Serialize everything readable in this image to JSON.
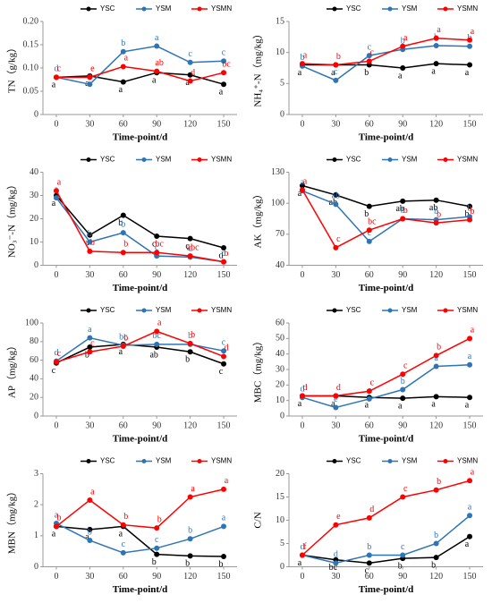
{
  "chart_data": [
    {
      "type": "line",
      "ylabel": "TN（g/kg）",
      "xlabel": "Time-point/d",
      "x": [
        0,
        30,
        60,
        90,
        120,
        150
      ],
      "xlim": [
        -12,
        162
      ],
      "xticks": [
        0,
        30,
        60,
        90,
        120,
        150
      ],
      "ylim": [
        0,
        0.2
      ],
      "yticks": [
        0,
        0.05,
        {
          "value": 0.1,
          "label": "0.10"
        },
        0.15,
        {
          "value": 0.2,
          "label": "0.20"
        }
      ],
      "series": [
        {
          "name": "YSC",
          "color": "#000000",
          "values": [
            0.08,
            0.083,
            0.07,
            0.09,
            0.085,
            0.065
          ],
          "letters": [
            "a",
            "a",
            "a",
            "a",
            "a",
            "a"
          ]
        },
        {
          "name": "YSM",
          "color": "#2e75b6",
          "values": [
            0.08,
            0.065,
            0.135,
            0.147,
            0.112,
            0.115
          ],
          "letters": [
            "d",
            "e",
            "b",
            "a",
            "c",
            "c"
          ]
        },
        {
          "name": "YSMN",
          "color": "#ff0000",
          "values": [
            0.08,
            0.08,
            0.103,
            0.093,
            0.072,
            0.09
          ],
          "letters": [
            "c",
            "e",
            "a",
            "ab",
            "d",
            "bc"
          ]
        }
      ]
    },
    {
      "type": "line",
      "ylabel": "NH₄⁺-N（mg/kg）",
      "xlabel": "Time-point/d",
      "x": [
        0,
        30,
        60,
        90,
        120,
        150
      ],
      "xlim": [
        -12,
        162
      ],
      "xticks": [
        0,
        30,
        60,
        90,
        120,
        150
      ],
      "ylim": [
        0,
        15
      ],
      "yticks": [
        0,
        5,
        10,
        15
      ],
      "series": [
        {
          "name": "YSC",
          "color": "#000000",
          "values": [
            8,
            8,
            8,
            7.5,
            8.2,
            8
          ],
          "letters": [
            "a",
            "a",
            "b",
            "a",
            "a",
            "a"
          ]
        },
        {
          "name": "YSM",
          "color": "#2e75b6",
          "values": [
            7.8,
            5.5,
            9.5,
            10.5,
            11.1,
            11
          ],
          "letters": [
            "b",
            "c",
            "c",
            "b",
            "b",
            "b"
          ]
        },
        {
          "name": "YSMN",
          "color": "#ff0000",
          "values": [
            8.2,
            8,
            8.6,
            11,
            12.3,
            12
          ],
          "letters": [
            "a",
            "b",
            "c",
            "a",
            "a",
            "a"
          ]
        }
      ]
    },
    {
      "type": "line",
      "ylabel": "NO₃⁻-N（mg/kg）",
      "xlabel": "Time-point/d",
      "x": [
        0,
        30,
        60,
        90,
        120,
        150
      ],
      "xlim": [
        -12,
        162
      ],
      "xticks": [
        0,
        30,
        60,
        90,
        120,
        150
      ],
      "ylim": [
        0,
        40
      ],
      "yticks": [
        0,
        10,
        20,
        30,
        40
      ],
      "series": [
        {
          "name": "YSC",
          "color": "#000000",
          "values": [
            30,
            13,
            21.5,
            12.5,
            11.5,
            7.5
          ],
          "letters": [
            "a",
            "a",
            "b",
            "c",
            "c",
            "d"
          ]
        },
        {
          "name": "YSM",
          "color": "#2e75b6",
          "values": [
            29,
            10,
            14,
            4,
            3.5,
            1.5
          ],
          "letters": [
            "a",
            "b",
            "b",
            "c",
            "d",
            "c"
          ]
        },
        {
          "name": "YSMN",
          "color": "#ff0000",
          "values": [
            32,
            6,
            5.5,
            5.5,
            4,
            1.5
          ],
          "letters": [
            "a",
            "b",
            "b",
            "bc",
            "abc",
            "b"
          ]
        }
      ]
    },
    {
      "type": "line",
      "ylabel": "AK（mg/kg）",
      "xlabel": "Time-point/d",
      "x": [
        0,
        30,
        60,
        90,
        120,
        150
      ],
      "xlim": [
        -12,
        162
      ],
      "xticks": [
        0,
        30,
        60,
        90,
        120,
        150
      ],
      "ylim": [
        40,
        130
      ],
      "yticks": [
        40,
        70,
        100,
        130
      ],
      "series": [
        {
          "name": "YSC",
          "color": "#000000",
          "values": [
            117,
            108,
            97,
            102,
            103,
            97
          ],
          "letters": [
            "a",
            "ab",
            "b",
            "ab",
            "ab",
            "b"
          ]
        },
        {
          "name": "YSM",
          "color": "#2e75b6",
          "values": [
            112,
            99,
            63,
            85,
            84,
            87
          ],
          "letters": [
            "a",
            "ab",
            "c",
            "b",
            "b",
            "b"
          ]
        },
        {
          "name": "YSMN",
          "color": "#ff0000",
          "values": [
            113,
            57,
            74,
            85,
            81,
            84
          ],
          "letters": [
            "a",
            "c",
            "bc",
            "b",
            "b",
            "b"
          ]
        }
      ]
    },
    {
      "type": "line",
      "ylabel": "AP（mg/kg）",
      "xlabel": "Time-point/d",
      "x": [
        0,
        30,
        60,
        90,
        120,
        150
      ],
      "xlim": [
        -12,
        162
      ],
      "xticks": [
        0,
        30,
        60,
        90,
        120,
        150
      ],
      "ylim": [
        0,
        100
      ],
      "yticks": [
        0,
        20,
        40,
        60,
        80,
        100
      ],
      "series": [
        {
          "name": "YSC",
          "color": "#000000",
          "values": [
            57,
            74,
            77,
            74,
            69,
            56
          ],
          "letters": [
            "c",
            "b",
            "a",
            "ab",
            "b",
            "c"
          ]
        },
        {
          "name": "YSM",
          "color": "#2e75b6",
          "values": [
            59,
            84,
            76,
            77,
            77,
            70
          ],
          "letters": [
            "d",
            "a",
            "bc",
            "bc",
            "b",
            "c"
          ]
        },
        {
          "name": "YSMN",
          "color": "#ff0000",
          "values": [
            58,
            69,
            75,
            91,
            78,
            64
          ],
          "letters": [
            "c",
            "c",
            "b",
            "a",
            "b",
            "d"
          ]
        }
      ]
    },
    {
      "type": "line",
      "ylabel": "MBC（mg/kg）",
      "xlabel": "Time-point/d",
      "x": [
        0,
        30,
        60,
        90,
        120,
        150
      ],
      "xlim": [
        -12,
        162
      ],
      "xticks": [
        0,
        30,
        60,
        90,
        120,
        150
      ],
      "ylim": [
        0,
        60
      ],
      "yticks": [
        0,
        10,
        20,
        30,
        40,
        50,
        60
      ],
      "series": [
        {
          "name": "YSC",
          "color": "#000000",
          "values": [
            13,
            13,
            12,
            11.5,
            12.5,
            12
          ],
          "letters": [
            "a",
            "a",
            "a",
            "a",
            "a",
            "a"
          ]
        },
        {
          "name": "YSM",
          "color": "#2e75b6",
          "values": [
            12,
            5.5,
            11,
            17,
            32,
            33
          ],
          "letters": [
            "d",
            "e",
            "c",
            "b",
            "a",
            "a"
          ]
        },
        {
          "name": "YSMN",
          "color": "#ff0000",
          "values": [
            13,
            13,
            16,
            27,
            39,
            50
          ],
          "letters": [
            "d",
            "d",
            "c",
            "c",
            "b",
            "a"
          ]
        }
      ]
    },
    {
      "type": "line",
      "ylabel": "MBN（mg/kg）",
      "xlabel": "Time-point/d",
      "x": [
        0,
        30,
        60,
        90,
        120,
        150
      ],
      "xlim": [
        -12,
        162
      ],
      "xticks": [
        0,
        30,
        60,
        90,
        120,
        150
      ],
      "ylim": [
        0,
        3
      ],
      "yticks": [
        0,
        1,
        2,
        3
      ],
      "series": [
        {
          "name": "YSC",
          "color": "#000000",
          "values": [
            1.3,
            1.2,
            1.3,
            0.4,
            0.35,
            0.33
          ],
          "letters": [
            "a",
            "a",
            "a",
            "b",
            "b",
            "b"
          ]
        },
        {
          "name": "YSM",
          "color": "#2e75b6",
          "values": [
            1.4,
            0.85,
            0.45,
            0.6,
            0.9,
            1.3
          ],
          "letters": [
            "a",
            "b",
            "c",
            "c",
            "b",
            "a"
          ]
        },
        {
          "name": "YSMN",
          "color": "#ff0000",
          "values": [
            1.3,
            2.15,
            1.35,
            1.25,
            2.25,
            2.5
          ],
          "letters": [
            "b",
            "a",
            "b",
            "b",
            "a",
            "a"
          ]
        }
      ]
    },
    {
      "type": "line",
      "ylabel": "C/N",
      "xlabel": "Time-point/d",
      "x": [
        0,
        30,
        60,
        90,
        120,
        150
      ],
      "xlim": [
        -12,
        162
      ],
      "xticks": [
        0,
        30,
        60,
        90,
        120,
        150
      ],
      "ylim": [
        0,
        20
      ],
      "yticks": [
        0,
        5,
        10,
        15,
        20
      ],
      "series": [
        {
          "name": "YSC",
          "color": "#000000",
          "values": [
            2.5,
            1.5,
            0.8,
            1.8,
            2,
            6.5
          ],
          "letters": [
            "a",
            "bc",
            "c",
            "b",
            "b",
            "a"
          ]
        },
        {
          "name": "YSM",
          "color": "#2e75b6",
          "values": [
            2.5,
            0.8,
            2.5,
            2.5,
            5,
            11
          ],
          "letters": [
            "d",
            "d",
            "b",
            "c",
            "b",
            "a"
          ]
        },
        {
          "name": "YSMN",
          "color": "#ff0000",
          "values": [
            2.5,
            9,
            10.5,
            15,
            16.5,
            18.5
          ],
          "letters": [
            "f",
            "e",
            "d",
            "c",
            "b",
            "a"
          ]
        }
      ]
    }
  ]
}
